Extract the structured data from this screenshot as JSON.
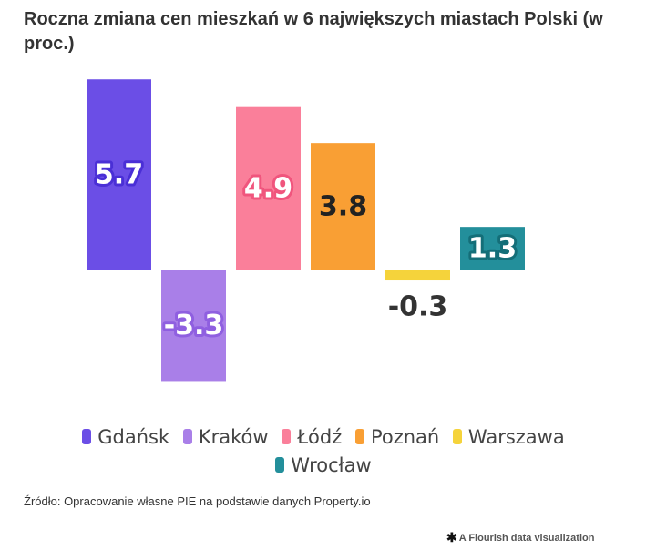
{
  "header": {
    "title": "Roczna zmiana cen mieszkań w 6 największych miastach Polski (w proc.)"
  },
  "chart_data": {
    "type": "bar",
    "title": "Roczna zmiana cen mieszkań w 6 największych miastach Polski (w proc.)",
    "categories": [
      "Gdańsk",
      "Kraków",
      "Łódź",
      "Poznań",
      "Warszawa",
      "Wrocław"
    ],
    "values": [
      5.7,
      -3.3,
      4.9,
      3.8,
      -0.3,
      1.3
    ],
    "value_labels": [
      "5.7",
      "-3.3",
      "4.9",
      "3.8",
      "-0.3",
      "1.3"
    ],
    "colors": [
      "#6b4ee6",
      "#a97fe8",
      "#fa7f9a",
      "#f99f34",
      "#f5d33b",
      "#238f9b"
    ],
    "label_text_colors": [
      "#ffffff",
      "#ffffff",
      "#ffffff",
      "#222222",
      "#333333",
      "#ffffff"
    ],
    "label_outline_colors": [
      "#4a2fd6",
      "#8f5fe0",
      "#f0557d",
      "#f99f34",
      "#ffffff",
      "#146e78"
    ],
    "xlabel": "",
    "ylabel": "",
    "ylim": [
      -3.3,
      5.7
    ],
    "grid": false,
    "legend_position": "bottom"
  },
  "legend": {
    "items": [
      {
        "label": "Gdańsk",
        "color": "#6b4ee6"
      },
      {
        "label": "Kraków",
        "color": "#a97fe8"
      },
      {
        "label": "Łódź",
        "color": "#fa7f9a"
      },
      {
        "label": "Poznań",
        "color": "#f99f34"
      },
      {
        "label": "Warszawa",
        "color": "#f5d33b"
      },
      {
        "label": "Wrocław",
        "color": "#238f9b"
      }
    ]
  },
  "footer": {
    "source": "Źródło: Opracowanie własne PIE na podstawie danych Property.io",
    "credit_icon": "flourish-asterisk-icon",
    "credit": "A Flourish data visualization"
  }
}
